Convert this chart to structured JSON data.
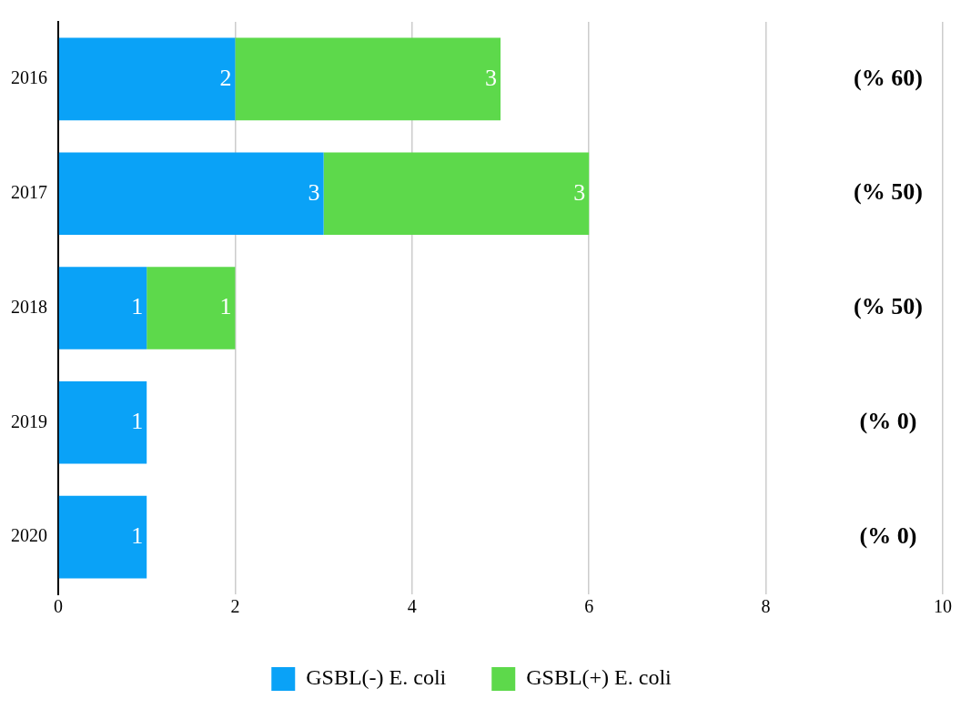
{
  "chart_data": {
    "type": "bar",
    "orientation": "horizontal",
    "stacked": true,
    "categories": [
      "2016",
      "2017",
      "2018",
      "2019",
      "2020"
    ],
    "series": [
      {
        "name": "GSBL(-) E. coli",
        "color": "#0aa2f7",
        "values": [
          2,
          3,
          1,
          1,
          1
        ],
        "value_labels": [
          "2",
          "3",
          "1",
          "1",
          "1"
        ]
      },
      {
        "name": "GSBL(+) E. coli",
        "color": "#5dd94b",
        "values": [
          3,
          3,
          1,
          0,
          0
        ],
        "value_labels": [
          "3",
          "3",
          "1",
          null,
          null
        ]
      }
    ],
    "xlim": [
      0,
      10
    ],
    "xticks": [
      0,
      2,
      4,
      6,
      8,
      10
    ],
    "grid": "x",
    "legend": "bottom",
    "annotations": [
      "(% 60)",
      "(% 50)",
      "(% 50)",
      "(% 0)",
      "(% 0)"
    ]
  }
}
